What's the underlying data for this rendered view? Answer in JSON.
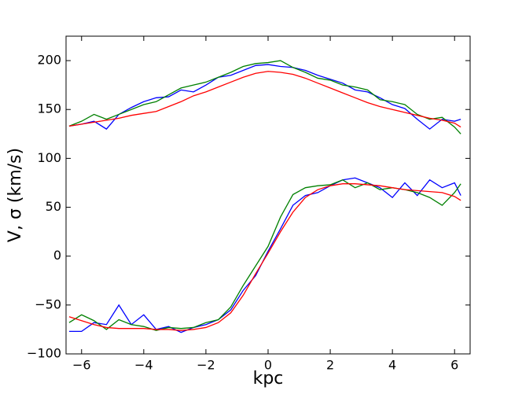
{
  "chart_data": {
    "type": "line",
    "xlabel": "kpc",
    "ylabel": "V, σ (km/s)",
    "xlim": [
      -6.5,
      6.5
    ],
    "ylim": [
      -100,
      225
    ],
    "xticks": [
      {
        "value": -6,
        "label": "−6"
      },
      {
        "value": -4,
        "label": "−4"
      },
      {
        "value": -2,
        "label": "−2"
      },
      0,
      2,
      4,
      6
    ],
    "yticks": [
      {
        "value": -100,
        "label": "−100"
      },
      {
        "value": -50,
        "label": "−50"
      },
      0,
      50,
      100,
      150,
      200
    ],
    "x": [
      -6.4,
      -6.0,
      -5.6,
      -5.2,
      -4.8,
      -4.4,
      -4.0,
      -3.6,
      -3.2,
      -2.8,
      -2.4,
      -2.0,
      -1.6,
      -1.2,
      -0.8,
      -0.4,
      0,
      0.4,
      0.8,
      1.2,
      1.6,
      2.0,
      2.4,
      2.8,
      3.2,
      3.6,
      4.0,
      4.4,
      4.8,
      5.2,
      5.6,
      6.0,
      6.2
    ],
    "series": [
      {
        "color": "#0000ff",
        "values": [
          133,
          135,
          138,
          130,
          145,
          152,
          158,
          162,
          163,
          170,
          168,
          175,
          183,
          185,
          190,
          195,
          196,
          194,
          193,
          190,
          185,
          181,
          177,
          170,
          168,
          162,
          155,
          151,
          140,
          130,
          140,
          138,
          140
        ]
      },
      {
        "color": "#008000",
        "values": [
          133,
          138,
          145,
          140,
          145,
          150,
          155,
          158,
          165,
          172,
          175,
          178,
          183,
          188,
          194,
          197,
          198,
          200,
          193,
          188,
          182,
          180,
          175,
          173,
          170,
          160,
          158,
          155,
          145,
          140,
          142,
          132,
          125
        ]
      },
      {
        "color": "#ff0000",
        "values": [
          133,
          135,
          137,
          139,
          141,
          144,
          146,
          148,
          153,
          158,
          164,
          168,
          173,
          178,
          183,
          187,
          189,
          188,
          186,
          182,
          177,
          172,
          167,
          162,
          157,
          153,
          150,
          147,
          144,
          141,
          139,
          136,
          132
        ]
      },
      {
        "color": "#0000ff",
        "values": [
          -77,
          -77,
          -68,
          -70,
          -50,
          -70,
          -60,
          -75,
          -72,
          -78,
          -73,
          -70,
          -65,
          -55,
          -35,
          -20,
          5,
          28,
          52,
          62,
          65,
          72,
          78,
          80,
          75,
          70,
          60,
          75,
          62,
          78,
          70,
          75,
          62
        ]
      },
      {
        "color": "#008000",
        "values": [
          -68,
          -60,
          -66,
          -75,
          -65,
          -70,
          -72,
          -76,
          -73,
          -74,
          -73,
          -68,
          -65,
          -52,
          -30,
          -10,
          10,
          40,
          63,
          70,
          72,
          73,
          78,
          70,
          75,
          68,
          70,
          68,
          65,
          60,
          52,
          65,
          74
        ]
      },
      {
        "color": "#ff0000",
        "values": [
          -62,
          -66,
          -70,
          -73,
          -74,
          -74,
          -74,
          -75,
          -75,
          -76,
          -75,
          -73,
          -68,
          -58,
          -40,
          -18,
          3,
          25,
          45,
          60,
          68,
          72,
          74,
          74,
          73,
          72,
          70,
          68,
          67,
          66,
          65,
          61,
          57
        ]
      }
    ]
  }
}
